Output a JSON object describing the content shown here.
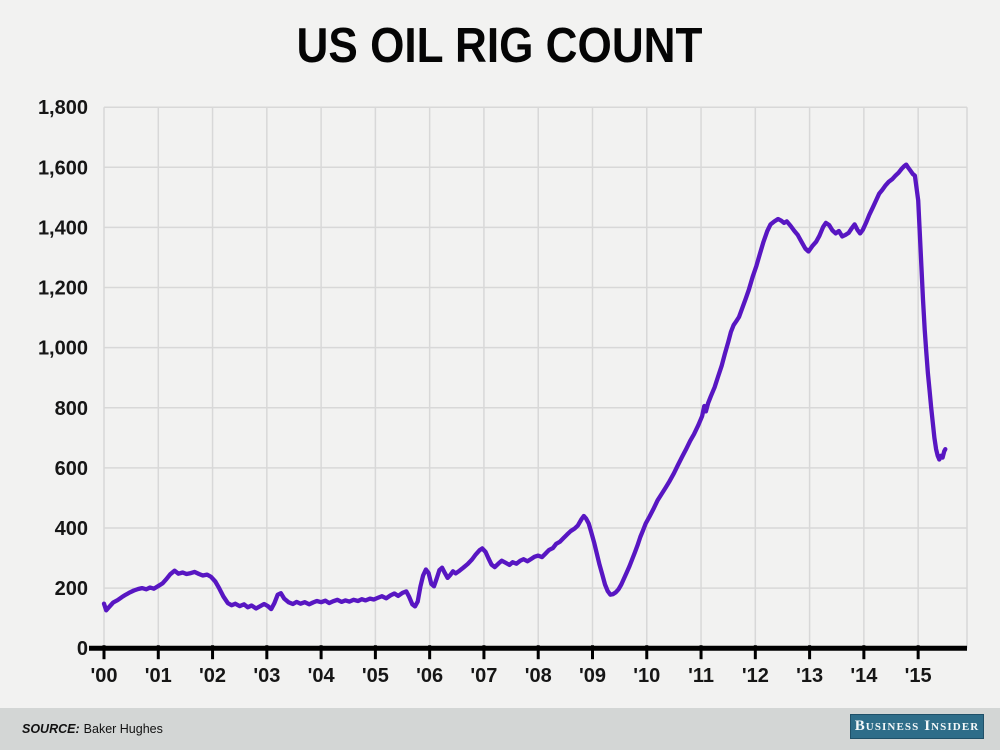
{
  "title": "US OIL RIG COUNT",
  "footer": {
    "source_label": "SOURCE:",
    "source_name": "Baker Hughes",
    "brand": "Business Insider"
  },
  "colors": {
    "line": "#5816c2",
    "grid": "#d8d8d8",
    "axis": "#000000",
    "text": "#161616",
    "background": "#f2f2f1",
    "footer_background": "#d3d6d5",
    "badge_background": "#2e6d89",
    "badge_text": "#f4f8f9"
  },
  "chart_data": {
    "type": "line",
    "title": "US OIL RIG COUNT",
    "xlabel": "",
    "ylabel": "",
    "xlim": [
      2000,
      2015.9
    ],
    "ylim": [
      0,
      1800
    ],
    "grid": true,
    "legend": "none",
    "x_tick_years": [
      2000,
      2001,
      2002,
      2003,
      2004,
      2005,
      2006,
      2007,
      2008,
      2009,
      2010,
      2011,
      2012,
      2013,
      2014,
      2015
    ],
    "x_tick_labels": [
      "'00",
      "'01",
      "'02",
      "'03",
      "'04",
      "'05",
      "'06",
      "'07",
      "'08",
      "'09",
      "'10",
      "'11",
      "'12",
      "'13",
      "'14",
      "'15"
    ],
    "y_ticks": [
      0,
      200,
      400,
      600,
      800,
      1000,
      1200,
      1400,
      1600,
      1800
    ],
    "y_tick_labels": [
      "0",
      "200",
      "400",
      "600",
      "800",
      "1,000",
      "1,200",
      "1,400",
      "1,600",
      "1,800"
    ],
    "series": [
      {
        "name": "US oil rig count",
        "points": [
          [
            2000.0,
            148
          ],
          [
            2000.04,
            126
          ],
          [
            2000.1,
            138
          ],
          [
            2000.17,
            152
          ],
          [
            2000.25,
            160
          ],
          [
            2000.33,
            170
          ],
          [
            2000.4,
            178
          ],
          [
            2000.48,
            186
          ],
          [
            2000.55,
            192
          ],
          [
            2000.63,
            197
          ],
          [
            2000.7,
            200
          ],
          [
            2000.78,
            196
          ],
          [
            2000.85,
            202
          ],
          [
            2000.92,
            198
          ],
          [
            2001.0,
            207
          ],
          [
            2001.08,
            216
          ],
          [
            2001.15,
            230
          ],
          [
            2001.22,
            246
          ],
          [
            2001.3,
            258
          ],
          [
            2001.37,
            248
          ],
          [
            2001.45,
            252
          ],
          [
            2001.52,
            247
          ],
          [
            2001.6,
            250
          ],
          [
            2001.67,
            254
          ],
          [
            2001.75,
            247
          ],
          [
            2001.82,
            242
          ],
          [
            2001.9,
            245
          ],
          [
            2001.97,
            238
          ],
          [
            2002.05,
            222
          ],
          [
            2002.12,
            200
          ],
          [
            2002.2,
            172
          ],
          [
            2002.28,
            150
          ],
          [
            2002.35,
            143
          ],
          [
            2002.42,
            148
          ],
          [
            2002.5,
            140
          ],
          [
            2002.58,
            146
          ],
          [
            2002.65,
            136
          ],
          [
            2002.72,
            142
          ],
          [
            2002.8,
            132
          ],
          [
            2002.88,
            140
          ],
          [
            2002.95,
            147
          ],
          [
            2003.02,
            140
          ],
          [
            2003.08,
            130
          ],
          [
            2003.14,
            150
          ],
          [
            2003.2,
            178
          ],
          [
            2003.26,
            183
          ],
          [
            2003.32,
            165
          ],
          [
            2003.4,
            153
          ],
          [
            2003.48,
            147
          ],
          [
            2003.55,
            154
          ],
          [
            2003.62,
            148
          ],
          [
            2003.7,
            153
          ],
          [
            2003.78,
            146
          ],
          [
            2003.85,
            152
          ],
          [
            2003.92,
            157
          ],
          [
            2004.0,
            153
          ],
          [
            2004.08,
            158
          ],
          [
            2004.15,
            150
          ],
          [
            2004.22,
            156
          ],
          [
            2004.3,
            161
          ],
          [
            2004.38,
            154
          ],
          [
            2004.45,
            159
          ],
          [
            2004.52,
            155
          ],
          [
            2004.6,
            161
          ],
          [
            2004.68,
            157
          ],
          [
            2004.75,
            163
          ],
          [
            2004.82,
            159
          ],
          [
            2004.9,
            165
          ],
          [
            2004.97,
            162
          ],
          [
            2005.05,
            168
          ],
          [
            2005.12,
            173
          ],
          [
            2005.2,
            166
          ],
          [
            2005.28,
            176
          ],
          [
            2005.35,
            182
          ],
          [
            2005.42,
            174
          ],
          [
            2005.5,
            184
          ],
          [
            2005.57,
            189
          ],
          [
            2005.62,
            172
          ],
          [
            2005.68,
            146
          ],
          [
            2005.73,
            139
          ],
          [
            2005.78,
            155
          ],
          [
            2005.83,
            205
          ],
          [
            2005.88,
            242
          ],
          [
            2005.93,
            262
          ],
          [
            2005.98,
            250
          ],
          [
            2006.03,
            214
          ],
          [
            2006.08,
            206
          ],
          [
            2006.13,
            232
          ],
          [
            2006.18,
            260
          ],
          [
            2006.23,
            268
          ],
          [
            2006.28,
            250
          ],
          [
            2006.33,
            234
          ],
          [
            2006.38,
            244
          ],
          [
            2006.43,
            256
          ],
          [
            2006.48,
            249
          ],
          [
            2006.55,
            258
          ],
          [
            2006.62,
            268
          ],
          [
            2006.7,
            280
          ],
          [
            2006.78,
            295
          ],
          [
            2006.85,
            312
          ],
          [
            2006.92,
            326
          ],
          [
            2006.97,
            332
          ],
          [
            2007.03,
            320
          ],
          [
            2007.08,
            300
          ],
          [
            2007.14,
            278
          ],
          [
            2007.2,
            270
          ],
          [
            2007.27,
            282
          ],
          [
            2007.33,
            291
          ],
          [
            2007.4,
            284
          ],
          [
            2007.47,
            277
          ],
          [
            2007.53,
            286
          ],
          [
            2007.6,
            281
          ],
          [
            2007.67,
            291
          ],
          [
            2007.73,
            296
          ],
          [
            2007.8,
            289
          ],
          [
            2007.87,
            297
          ],
          [
            2007.93,
            304
          ],
          [
            2008.0,
            308
          ],
          [
            2008.07,
            303
          ],
          [
            2008.13,
            314
          ],
          [
            2008.2,
            327
          ],
          [
            2008.27,
            333
          ],
          [
            2008.33,
            347
          ],
          [
            2008.4,
            354
          ],
          [
            2008.47,
            367
          ],
          [
            2008.53,
            378
          ],
          [
            2008.6,
            390
          ],
          [
            2008.67,
            398
          ],
          [
            2008.73,
            408
          ],
          [
            2008.8,
            430
          ],
          [
            2008.84,
            440
          ],
          [
            2008.88,
            432
          ],
          [
            2008.93,
            415
          ],
          [
            2008.97,
            390
          ],
          [
            2009.03,
            352
          ],
          [
            2009.08,
            315
          ],
          [
            2009.13,
            278
          ],
          [
            2009.18,
            245
          ],
          [
            2009.23,
            212
          ],
          [
            2009.28,
            190
          ],
          [
            2009.33,
            178
          ],
          [
            2009.38,
            180
          ],
          [
            2009.43,
            186
          ],
          [
            2009.48,
            196
          ],
          [
            2009.53,
            212
          ],
          [
            2009.58,
            232
          ],
          [
            2009.63,
            252
          ],
          [
            2009.68,
            272
          ],
          [
            2009.73,
            295
          ],
          [
            2009.78,
            318
          ],
          [
            2009.83,
            342
          ],
          [
            2009.88,
            370
          ],
          [
            2009.93,
            392
          ],
          [
            2009.98,
            415
          ],
          [
            2010.05,
            438
          ],
          [
            2010.12,
            462
          ],
          [
            2010.2,
            492
          ],
          [
            2010.28,
            515
          ],
          [
            2010.35,
            535
          ],
          [
            2010.42,
            556
          ],
          [
            2010.5,
            582
          ],
          [
            2010.57,
            608
          ],
          [
            2010.65,
            636
          ],
          [
            2010.72,
            660
          ],
          [
            2010.8,
            690
          ],
          [
            2010.87,
            712
          ],
          [
            2010.95,
            742
          ],
          [
            2011.02,
            772
          ],
          [
            2011.06,
            806
          ],
          [
            2011.09,
            788
          ],
          [
            2011.13,
            815
          ],
          [
            2011.18,
            838
          ],
          [
            2011.25,
            868
          ],
          [
            2011.31,
            902
          ],
          [
            2011.38,
            940
          ],
          [
            2011.44,
            980
          ],
          [
            2011.5,
            1018
          ],
          [
            2011.55,
            1052
          ],
          [
            2011.6,
            1075
          ],
          [
            2011.65,
            1088
          ],
          [
            2011.7,
            1102
          ],
          [
            2011.76,
            1132
          ],
          [
            2011.82,
            1162
          ],
          [
            2011.88,
            1192
          ],
          [
            2011.95,
            1235
          ],
          [
            2012.02,
            1272
          ],
          [
            2012.08,
            1310
          ],
          [
            2012.15,
            1352
          ],
          [
            2012.22,
            1388
          ],
          [
            2012.28,
            1410
          ],
          [
            2012.35,
            1420
          ],
          [
            2012.42,
            1428
          ],
          [
            2012.48,
            1422
          ],
          [
            2012.53,
            1415
          ],
          [
            2012.58,
            1420
          ],
          [
            2012.65,
            1405
          ],
          [
            2012.72,
            1388
          ],
          [
            2012.78,
            1375
          ],
          [
            2012.85,
            1352
          ],
          [
            2012.92,
            1330
          ],
          [
            2012.98,
            1320
          ],
          [
            2013.05,
            1338
          ],
          [
            2013.12,
            1352
          ],
          [
            2013.18,
            1372
          ],
          [
            2013.25,
            1402
          ],
          [
            2013.3,
            1415
          ],
          [
            2013.36,
            1408
          ],
          [
            2013.42,
            1390
          ],
          [
            2013.48,
            1380
          ],
          [
            2013.54,
            1388
          ],
          [
            2013.6,
            1370
          ],
          [
            2013.66,
            1375
          ],
          [
            2013.72,
            1382
          ],
          [
            2013.78,
            1398
          ],
          [
            2013.83,
            1410
          ],
          [
            2013.88,
            1392
          ],
          [
            2013.93,
            1380
          ],
          [
            2013.98,
            1392
          ],
          [
            2014.04,
            1415
          ],
          [
            2014.1,
            1442
          ],
          [
            2014.16,
            1465
          ],
          [
            2014.22,
            1488
          ],
          [
            2014.28,
            1512
          ],
          [
            2014.34,
            1525
          ],
          [
            2014.4,
            1540
          ],
          [
            2014.46,
            1552
          ],
          [
            2014.52,
            1560
          ],
          [
            2014.58,
            1572
          ],
          [
            2014.64,
            1582
          ],
          [
            2014.7,
            1596
          ],
          [
            2014.75,
            1605
          ],
          [
            2014.78,
            1609
          ],
          [
            2014.82,
            1598
          ],
          [
            2014.86,
            1588
          ],
          [
            2014.9,
            1578
          ],
          [
            2014.94,
            1572
          ],
          [
            2015.0,
            1490
          ],
          [
            2015.03,
            1380
          ],
          [
            2015.06,
            1270
          ],
          [
            2015.09,
            1160
          ],
          [
            2015.12,
            1060
          ],
          [
            2015.15,
            985
          ],
          [
            2015.18,
            915
          ],
          [
            2015.21,
            860
          ],
          [
            2015.24,
            800
          ],
          [
            2015.27,
            750
          ],
          [
            2015.3,
            700
          ],
          [
            2015.33,
            662
          ],
          [
            2015.36,
            640
          ],
          [
            2015.39,
            628
          ],
          [
            2015.42,
            640
          ],
          [
            2015.45,
            634
          ],
          [
            2015.48,
            655
          ],
          [
            2015.5,
            662
          ]
        ]
      }
    ]
  }
}
